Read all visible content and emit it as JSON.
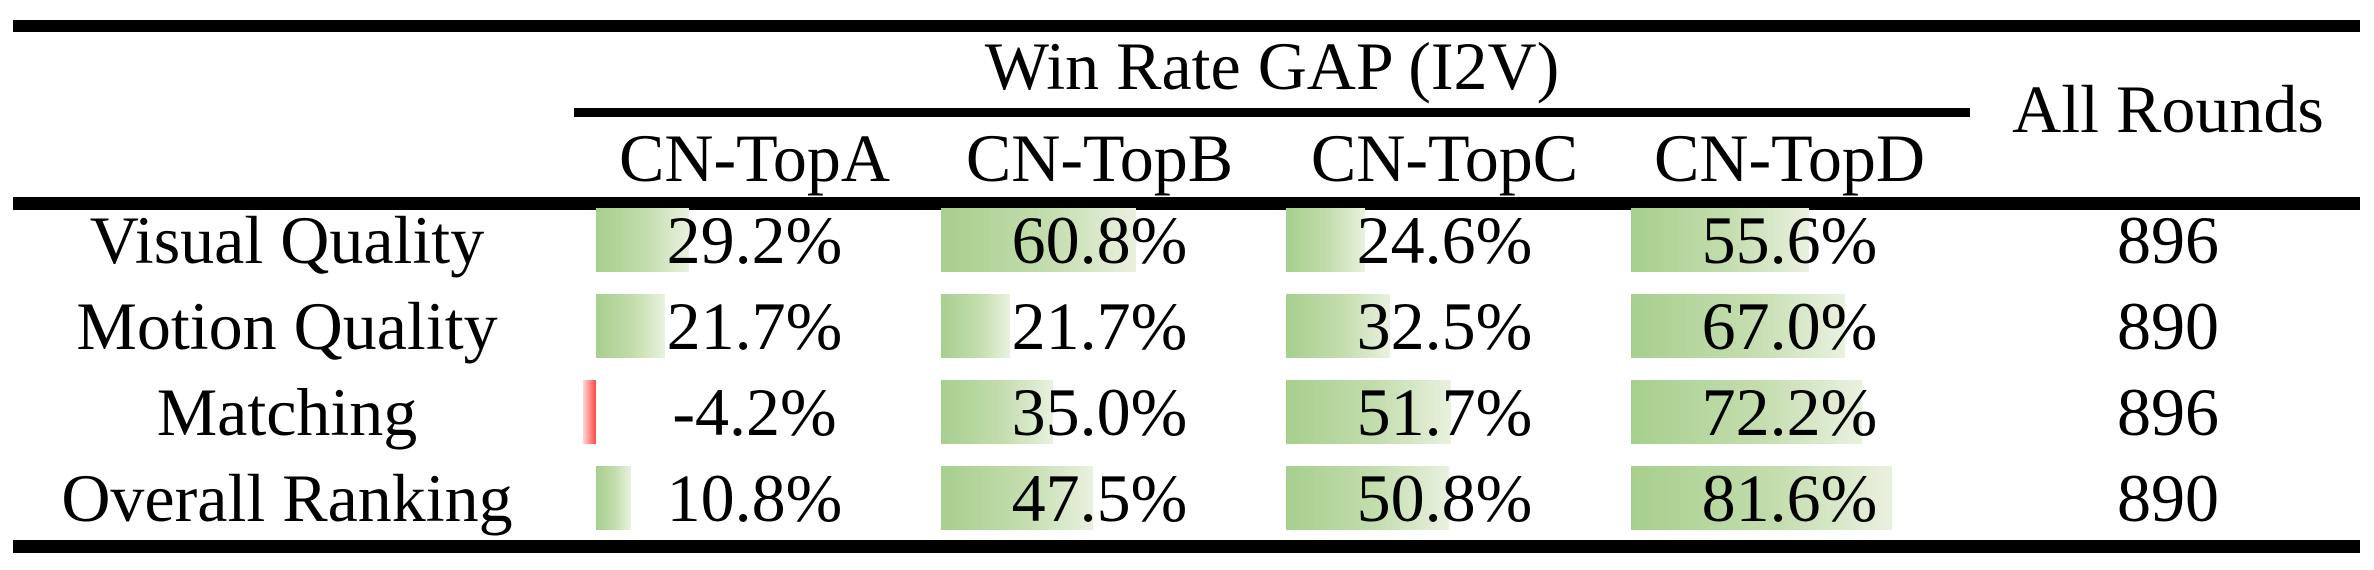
{
  "title": "Win Rate GAP (I2V)",
  "all_rounds_label": "All Rounds",
  "columns": [
    "CN-TopA",
    "CN-TopB",
    "CN-TopC",
    "CN-TopD"
  ],
  "rows": [
    {
      "label": "Visual Quality",
      "cells": [
        {
          "value": 29.2,
          "text": "29.2%"
        },
        {
          "value": 60.8,
          "text": "60.8%"
        },
        {
          "value": 24.6,
          "text": "24.6%"
        },
        {
          "value": 55.6,
          "text": "55.6%"
        }
      ],
      "all_rounds": "896"
    },
    {
      "label": "Motion Quality",
      "cells": [
        {
          "value": 21.7,
          "text": "21.7%"
        },
        {
          "value": 21.7,
          "text": "21.7%"
        },
        {
          "value": 32.5,
          "text": "32.5%"
        },
        {
          "value": 67.0,
          "text": "67.0%"
        }
      ],
      "all_rounds": "890"
    },
    {
      "label": "Matching",
      "cells": [
        {
          "value": -4.2,
          "text": "-4.2%"
        },
        {
          "value": 35.0,
          "text": "35.0%"
        },
        {
          "value": 51.7,
          "text": "51.7%"
        },
        {
          "value": 72.2,
          "text": "72.2%"
        }
      ],
      "all_rounds": "896"
    },
    {
      "label": "Overall Ranking",
      "cells": [
        {
          "value": 10.8,
          "text": "10.8%"
        },
        {
          "value": 47.5,
          "text": "47.5%"
        },
        {
          "value": 50.8,
          "text": "50.8%"
        },
        {
          "value": 81.6,
          "text": "81.6%"
        }
      ],
      "all_rounds": "890"
    }
  ],
  "colors": {
    "positive_bar_start": "#a7cf8e",
    "positive_bar_end": "#e9f1df",
    "negative_bar_strong": "#ff4a42",
    "negative_bar_light": "#ffd9d6",
    "rule": "#000000",
    "text": "#000000",
    "background": "#ffffff"
  },
  "chart_data": {
    "type": "table",
    "title": "Win Rate GAP (I2V)",
    "row_labels": [
      "Visual Quality",
      "Motion Quality",
      "Matching",
      "Overall Ranking"
    ],
    "columns": [
      "CN-TopA",
      "CN-TopB",
      "CN-TopC",
      "CN-TopD",
      "All Rounds"
    ],
    "values": [
      [
        29.2,
        60.8,
        24.6,
        55.6,
        896
      ],
      [
        21.7,
        21.7,
        32.5,
        67.0,
        890
      ],
      [
        -4.2,
        35.0,
        51.7,
        72.2,
        896
      ],
      [
        10.8,
        47.5,
        50.8,
        81.6,
        890
      ]
    ],
    "units": {
      "cn_columns": "percent win-rate gap",
      "all_rounds": "round count"
    },
    "bar_scale": "in-cell data bars, 0-100% of cell width, negative values shown red left of axis",
    "legend_position": "none",
    "grid": false
  }
}
